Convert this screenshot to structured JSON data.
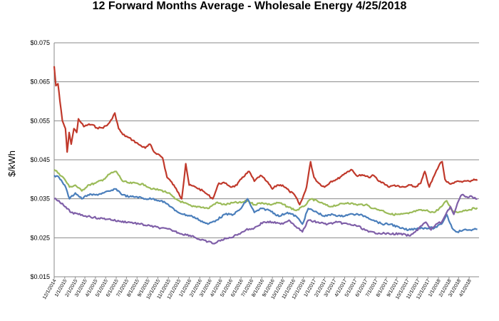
{
  "chart_data": {
    "type": "line",
    "title": "12 Forward Months Average - Wholesale Energy 4/25/2018",
    "xlabel": "",
    "ylabel": "$/kWh",
    "ylim": [
      0.015,
      0.075
    ],
    "yticks": [
      "$0.015",
      "$0.025",
      "$0.035",
      "$0.045",
      "$0.055",
      "$0.065",
      "$0.075"
    ],
    "ytick_values": [
      0.015,
      0.025,
      0.035,
      0.045,
      0.055,
      0.065,
      0.075
    ],
    "xlim": [
      "2014-12-01",
      "2018-04-30"
    ],
    "xticks": [
      "12/1/2014",
      "1/1/2015",
      "2/1/2015",
      "3/1/2015",
      "4/1/2015",
      "5/1/2015",
      "6/1/2015",
      "7/1/2015",
      "8/1/2015",
      "9/1/2015",
      "10/1/2015",
      "11/1/2015",
      "12/1/2015",
      "1/1/2016",
      "2/1/2016",
      "3/1/2016",
      "4/1/2016",
      "5/1/2016",
      "6/1/2016",
      "7/1/2016",
      "8/1/2016",
      "9/1/2016",
      "10/1/2016",
      "11/1/2016",
      "12/1/2016",
      "1/1/2017",
      "2/1/2017",
      "3/1/2017",
      "4/1/2017",
      "5/1/2017",
      "6/1/2017",
      "7/1/2017",
      "8/1/2017",
      "9/1/2017",
      "10/1/2017",
      "11/1/2017",
      "12/1/2017",
      "1/1/2018",
      "2/1/2018",
      "3/1/2018",
      "4/1/2018"
    ],
    "grid": "horizontal",
    "legend": "none",
    "series": [
      {
        "color": "#c0392b",
        "points": [
          [
            "2014-12-01",
            0.069
          ],
          [
            "2014-12-06",
            0.064
          ],
          [
            "2014-12-12",
            0.0645
          ],
          [
            "2014-12-18",
            0.06
          ],
          [
            "2014-12-25",
            0.055
          ],
          [
            "2015-01-03",
            0.053
          ],
          [
            "2015-01-08",
            0.047
          ],
          [
            "2015-01-14",
            0.052
          ],
          [
            "2015-01-20",
            0.049
          ],
          [
            "2015-01-28",
            0.053
          ],
          [
            "2015-02-05",
            0.052
          ],
          [
            "2015-02-10",
            0.0555
          ],
          [
            "2015-02-18",
            0.0545
          ],
          [
            "2015-02-26",
            0.0535
          ],
          [
            "2015-03-10",
            0.054
          ],
          [
            "2015-03-22",
            0.054
          ],
          [
            "2015-04-05",
            0.0532
          ],
          [
            "2015-04-20",
            0.0532
          ],
          [
            "2015-05-05",
            0.0538
          ],
          [
            "2015-05-20",
            0.0555
          ],
          [
            "2015-05-28",
            0.057
          ],
          [
            "2015-06-08",
            0.053
          ],
          [
            "2015-06-20",
            0.0515
          ],
          [
            "2015-07-05",
            0.0508
          ],
          [
            "2015-07-20",
            0.05
          ],
          [
            "2015-08-05",
            0.049
          ],
          [
            "2015-08-25",
            0.048
          ],
          [
            "2015-09-08",
            0.049
          ],
          [
            "2015-09-20",
            0.047
          ],
          [
            "2015-10-01",
            0.0465
          ],
          [
            "2015-10-15",
            0.0455
          ],
          [
            "2015-10-28",
            0.0405
          ],
          [
            "2015-11-08",
            0.0395
          ],
          [
            "2015-11-20",
            0.038
          ],
          [
            "2015-12-01",
            0.0365
          ],
          [
            "2015-12-10",
            0.035
          ],
          [
            "2015-12-22",
            0.044
          ],
          [
            "2016-01-01",
            0.0385
          ],
          [
            "2016-01-20",
            0.038
          ],
          [
            "2016-02-10",
            0.037
          ],
          [
            "2016-02-25",
            0.036
          ],
          [
            "2016-03-10",
            0.035
          ],
          [
            "2016-03-28",
            0.039
          ],
          [
            "2016-04-15",
            0.039
          ],
          [
            "2016-05-05",
            0.038
          ],
          [
            "2016-05-20",
            0.0385
          ],
          [
            "2016-06-05",
            0.0405
          ],
          [
            "2016-06-25",
            0.042
          ],
          [
            "2016-07-10",
            0.0395
          ],
          [
            "2016-07-28",
            0.041
          ],
          [
            "2016-08-15",
            0.0395
          ],
          [
            "2016-09-01",
            0.0375
          ],
          [
            "2016-09-15",
            0.0385
          ],
          [
            "2016-10-01",
            0.0385
          ],
          [
            "2016-10-20",
            0.037
          ],
          [
            "2016-11-05",
            0.036
          ],
          [
            "2016-11-20",
            0.0335
          ],
          [
            "2016-11-28",
            0.035
          ],
          [
            "2016-12-10",
            0.038
          ],
          [
            "2016-12-22",
            0.0445
          ],
          [
            "2017-01-01",
            0.0405
          ],
          [
            "2017-01-15",
            0.039
          ],
          [
            "2017-02-01",
            0.038
          ],
          [
            "2017-02-20",
            0.0395
          ],
          [
            "2017-03-10",
            0.04
          ],
          [
            "2017-04-01",
            0.0415
          ],
          [
            "2017-04-20",
            0.0425
          ],
          [
            "2017-05-05",
            0.041
          ],
          [
            "2017-05-25",
            0.041
          ],
          [
            "2017-06-10",
            0.0405
          ],
          [
            "2017-06-25",
            0.041
          ],
          [
            "2017-07-10",
            0.0395
          ],
          [
            "2017-07-25",
            0.039
          ],
          [
            "2017-08-10",
            0.038
          ],
          [
            "2017-08-25",
            0.0385
          ],
          [
            "2017-09-10",
            0.038
          ],
          [
            "2017-09-25",
            0.038
          ],
          [
            "2017-10-10",
            0.0385
          ],
          [
            "2017-10-25",
            0.038
          ],
          [
            "2017-11-10",
            0.039
          ],
          [
            "2017-11-22",
            0.042
          ],
          [
            "2017-12-05",
            0.038
          ],
          [
            "2017-12-20",
            0.041
          ],
          [
            "2018-01-05",
            0.044
          ],
          [
            "2018-01-12",
            0.0445
          ],
          [
            "2018-01-20",
            0.04
          ],
          [
            "2018-02-01",
            0.039
          ],
          [
            "2018-02-15",
            0.039
          ],
          [
            "2018-03-01",
            0.0395
          ],
          [
            "2018-03-15",
            0.0395
          ],
          [
            "2018-04-01",
            0.0395
          ],
          [
            "2018-04-15",
            0.04
          ],
          [
            "2018-04-25",
            0.0397
          ]
        ]
      },
      {
        "color": "#9bbb59",
        "points": [
          [
            "2014-12-01",
            0.0425
          ],
          [
            "2014-12-15",
            0.0415
          ],
          [
            "2015-01-01",
            0.04
          ],
          [
            "2015-01-15",
            0.038
          ],
          [
            "2015-02-01",
            0.0385
          ],
          [
            "2015-02-20",
            0.037
          ],
          [
            "2015-03-10",
            0.0385
          ],
          [
            "2015-04-01",
            0.039
          ],
          [
            "2015-04-25",
            0.04
          ],
          [
            "2015-05-15",
            0.0415
          ],
          [
            "2015-06-01",
            0.042
          ],
          [
            "2015-06-20",
            0.0395
          ],
          [
            "2015-07-10",
            0.039
          ],
          [
            "2015-08-01",
            0.039
          ],
          [
            "2015-08-25",
            0.0385
          ],
          [
            "2015-09-15",
            0.0375
          ],
          [
            "2015-10-10",
            0.0372
          ],
          [
            "2015-11-01",
            0.0365
          ],
          [
            "2015-11-20",
            0.035
          ],
          [
            "2015-12-15",
            0.034
          ],
          [
            "2016-01-10",
            0.033
          ],
          [
            "2016-02-01",
            0.033
          ],
          [
            "2016-02-25",
            0.0325
          ],
          [
            "2016-03-20",
            0.034
          ],
          [
            "2016-04-15",
            0.0335
          ],
          [
            "2016-05-10",
            0.034
          ],
          [
            "2016-06-01",
            0.034
          ],
          [
            "2016-06-20",
            0.0345
          ],
          [
            "2016-07-10",
            0.0335
          ],
          [
            "2016-08-01",
            0.034
          ],
          [
            "2016-08-25",
            0.0335
          ],
          [
            "2016-09-20",
            0.034
          ],
          [
            "2016-10-15",
            0.033
          ],
          [
            "2016-11-10",
            0.032
          ],
          [
            "2016-12-01",
            0.033
          ],
          [
            "2016-12-25",
            0.035
          ],
          [
            "2017-01-20",
            0.034
          ],
          [
            "2017-02-15",
            0.033
          ],
          [
            "2017-03-15",
            0.0335
          ],
          [
            "2017-04-10",
            0.034
          ],
          [
            "2017-05-05",
            0.0335
          ],
          [
            "2017-06-01",
            0.0335
          ],
          [
            "2017-06-25",
            0.0325
          ],
          [
            "2017-07-20",
            0.032
          ],
          [
            "2017-08-15",
            0.031
          ],
          [
            "2017-09-10",
            0.031
          ],
          [
            "2017-10-05",
            0.0312
          ],
          [
            "2017-11-01",
            0.032
          ],
          [
            "2017-11-25",
            0.032
          ],
          [
            "2017-12-20",
            0.0315
          ],
          [
            "2018-01-10",
            0.033
          ],
          [
            "2018-01-25",
            0.0345
          ],
          [
            "2018-02-10",
            0.032
          ],
          [
            "2018-02-25",
            0.0315
          ],
          [
            "2018-03-15",
            0.032
          ],
          [
            "2018-04-01",
            0.0322
          ],
          [
            "2018-04-25",
            0.0327
          ]
        ]
      },
      {
        "color": "#4a7ebb",
        "points": [
          [
            "2014-12-01",
            0.041
          ],
          [
            "2014-12-15",
            0.0405
          ],
          [
            "2015-01-01",
            0.0385
          ],
          [
            "2015-01-15",
            0.035
          ],
          [
            "2015-02-01",
            0.0365
          ],
          [
            "2015-02-20",
            0.035
          ],
          [
            "2015-03-10",
            0.036
          ],
          [
            "2015-04-01",
            0.036
          ],
          [
            "2015-04-25",
            0.0365
          ],
          [
            "2015-05-15",
            0.037
          ],
          [
            "2015-06-01",
            0.0375
          ],
          [
            "2015-06-20",
            0.036
          ],
          [
            "2015-07-10",
            0.0355
          ],
          [
            "2015-08-01",
            0.0355
          ],
          [
            "2015-08-25",
            0.035
          ],
          [
            "2015-09-15",
            0.035
          ],
          [
            "2015-10-10",
            0.0345
          ],
          [
            "2015-11-01",
            0.0335
          ],
          [
            "2015-11-20",
            0.032
          ],
          [
            "2015-12-15",
            0.031
          ],
          [
            "2016-01-10",
            0.0305
          ],
          [
            "2016-02-01",
            0.0295
          ],
          [
            "2016-02-25",
            0.0285
          ],
          [
            "2016-03-20",
            0.0295
          ],
          [
            "2016-04-15",
            0.031
          ],
          [
            "2016-05-10",
            0.031
          ],
          [
            "2016-06-01",
            0.0325
          ],
          [
            "2016-06-20",
            0.035
          ],
          [
            "2016-07-10",
            0.0315
          ],
          [
            "2016-08-01",
            0.0325
          ],
          [
            "2016-08-25",
            0.032
          ],
          [
            "2016-09-20",
            0.0305
          ],
          [
            "2016-10-15",
            0.0315
          ],
          [
            "2016-11-10",
            0.0305
          ],
          [
            "2016-11-28",
            0.0285
          ],
          [
            "2016-12-15",
            0.0325
          ],
          [
            "2017-01-10",
            0.0315
          ],
          [
            "2017-02-01",
            0.0305
          ],
          [
            "2017-02-25",
            0.031
          ],
          [
            "2017-03-20",
            0.0305
          ],
          [
            "2017-04-15",
            0.031
          ],
          [
            "2017-05-10",
            0.031
          ],
          [
            "2017-06-01",
            0.0305
          ],
          [
            "2017-06-25",
            0.0295
          ],
          [
            "2017-07-20",
            0.0285
          ],
          [
            "2017-08-15",
            0.0285
          ],
          [
            "2017-09-10",
            0.0275
          ],
          [
            "2017-10-05",
            0.027
          ],
          [
            "2017-11-01",
            0.0275
          ],
          [
            "2017-11-25",
            0.0275
          ],
          [
            "2017-12-20",
            0.0275
          ],
          [
            "2018-01-10",
            0.0285
          ],
          [
            "2018-01-25",
            0.031
          ],
          [
            "2018-02-10",
            0.0275
          ],
          [
            "2018-02-25",
            0.0265
          ],
          [
            "2018-03-15",
            0.027
          ],
          [
            "2018-04-01",
            0.027
          ],
          [
            "2018-04-25",
            0.0272
          ]
        ]
      },
      {
        "color": "#7f5fa8",
        "points": [
          [
            "2014-12-01",
            0.035
          ],
          [
            "2014-12-15",
            0.0345
          ],
          [
            "2015-01-01",
            0.033
          ],
          [
            "2015-01-20",
            0.0315
          ],
          [
            "2015-02-10",
            0.031
          ],
          [
            "2015-03-10",
            0.0305
          ],
          [
            "2015-04-10",
            0.03
          ],
          [
            "2015-05-10",
            0.0298
          ],
          [
            "2015-06-10",
            0.0292
          ],
          [
            "2015-07-10",
            0.029
          ],
          [
            "2015-08-10",
            0.0285
          ],
          [
            "2015-09-10",
            0.028
          ],
          [
            "2015-10-10",
            0.0275
          ],
          [
            "2015-11-10",
            0.027
          ],
          [
            "2015-12-10",
            0.026
          ],
          [
            "2016-01-10",
            0.0255
          ],
          [
            "2016-02-01",
            0.0245
          ],
          [
            "2016-02-25",
            0.024
          ],
          [
            "2016-03-15",
            0.0235
          ],
          [
            "2016-04-05",
            0.0245
          ],
          [
            "2016-05-01",
            0.025
          ],
          [
            "2016-05-25",
            0.026
          ],
          [
            "2016-06-15",
            0.027
          ],
          [
            "2016-07-10",
            0.0275
          ],
          [
            "2016-08-05",
            0.029
          ],
          [
            "2016-09-01",
            0.029
          ],
          [
            "2016-09-25",
            0.0285
          ],
          [
            "2016-10-20",
            0.0295
          ],
          [
            "2016-11-15",
            0.0275
          ],
          [
            "2016-11-28",
            0.0265
          ],
          [
            "2016-12-15",
            0.0295
          ],
          [
            "2017-01-10",
            0.029
          ],
          [
            "2017-02-10",
            0.0285
          ],
          [
            "2017-03-10",
            0.029
          ],
          [
            "2017-04-10",
            0.0285
          ],
          [
            "2017-05-10",
            0.028
          ],
          [
            "2017-06-10",
            0.0265
          ],
          [
            "2017-07-10",
            0.0262
          ],
          [
            "2017-08-10",
            0.026
          ],
          [
            "2017-09-10",
            0.026
          ],
          [
            "2017-10-10",
            0.0255
          ],
          [
            "2017-10-25",
            0.0265
          ],
          [
            "2017-11-10",
            0.028
          ],
          [
            "2017-11-25",
            0.029
          ],
          [
            "2017-12-10",
            0.027
          ],
          [
            "2017-12-25",
            0.0285
          ],
          [
            "2018-01-10",
            0.029
          ],
          [
            "2018-01-25",
            0.0315
          ],
          [
            "2018-02-05",
            0.033
          ],
          [
            "2018-02-15",
            0.031
          ],
          [
            "2018-03-01",
            0.0345
          ],
          [
            "2018-03-10",
            0.036
          ],
          [
            "2018-03-25",
            0.0355
          ],
          [
            "2018-04-10",
            0.0355
          ],
          [
            "2018-04-25",
            0.035
          ]
        ]
      }
    ]
  }
}
